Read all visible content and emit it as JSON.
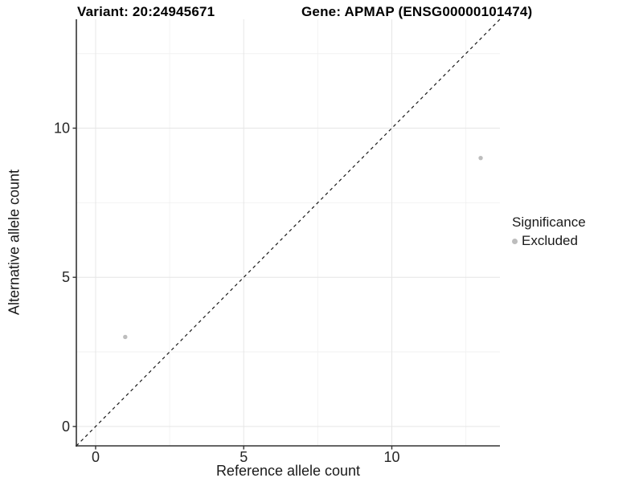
{
  "chart_data": {
    "type": "scatter",
    "title_left": "Variant: 20:24945671",
    "title_right": "Gene: APMAP (ENSG00000101474)",
    "xlabel": "Reference allele count",
    "ylabel": "Alternative allele count",
    "xlim": [
      -0.65,
      13.65
    ],
    "ylim": [
      -0.65,
      13.65
    ],
    "x_ticks": [
      0,
      5,
      10
    ],
    "y_ticks": [
      0,
      5,
      10
    ],
    "x_minor_gridlines": [
      2.5,
      7.5,
      12.5
    ],
    "y_minor_gridlines": [
      2.5,
      7.5,
      12.5
    ],
    "grid": "major+minor",
    "legend_position": "right-middle",
    "identity_line": {
      "type": "y=x",
      "style": "dashed",
      "color": "#1a1a1a"
    },
    "series": [
      {
        "name": "Excluded",
        "color": "#bdbdbd",
        "points": [
          {
            "x": 1,
            "y": 3
          },
          {
            "x": 13,
            "y": 9
          }
        ]
      }
    ],
    "legend": {
      "title": "Significance",
      "items": [
        {
          "label": "Excluded",
          "color": "#bdbdbd"
        }
      ]
    },
    "colors": {
      "axis_line": "#333333",
      "tick_label": "#262626",
      "major_grid": "#e6e6e6",
      "minor_grid": "#f2f2f2",
      "panel_bg": "#ffffff"
    }
  }
}
